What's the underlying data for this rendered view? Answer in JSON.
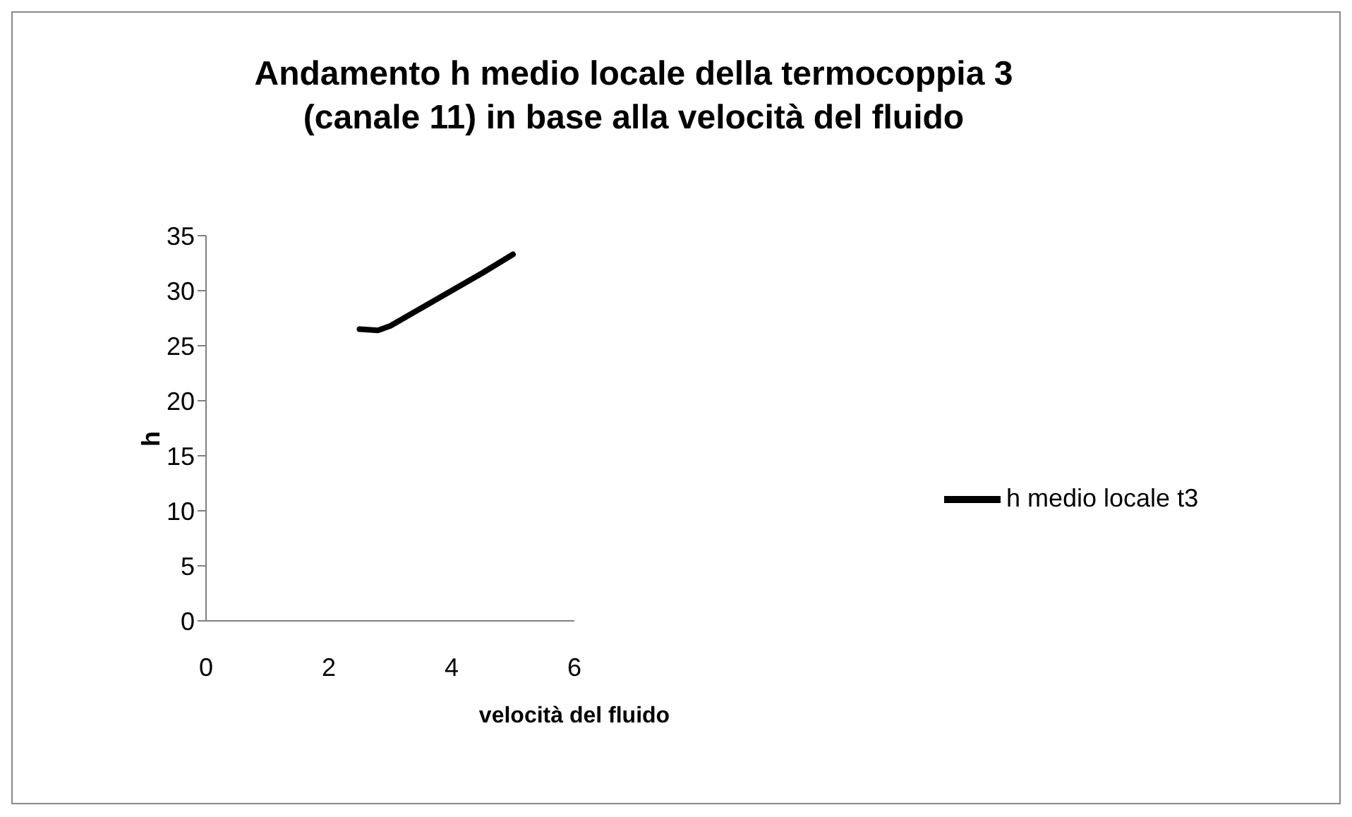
{
  "chart_data": {
    "type": "line",
    "title": "Andamento h medio locale della termocoppia 3 (canale 11) in base alla velocità del fluido",
    "xlabel": "velocità del fluido",
    "ylabel": "h",
    "x": [
      2.5,
      2.8,
      3,
      3.5,
      4,
      4.5,
      5
    ],
    "series": [
      {
        "name": "h medio locale t3",
        "color": "#000000",
        "values": [
          26.5,
          26.4,
          26.8,
          28.4,
          30.0,
          31.6,
          33.3
        ]
      }
    ],
    "xlim": [
      0,
      6
    ],
    "xticks": [
      0,
      2,
      4,
      6
    ],
    "ylim": [
      0,
      35
    ],
    "yticks": [
      0,
      5,
      10,
      15,
      20,
      25,
      30,
      35
    ],
    "grid": false,
    "legend": "right",
    "marker": "none",
    "line_style": "solid"
  }
}
